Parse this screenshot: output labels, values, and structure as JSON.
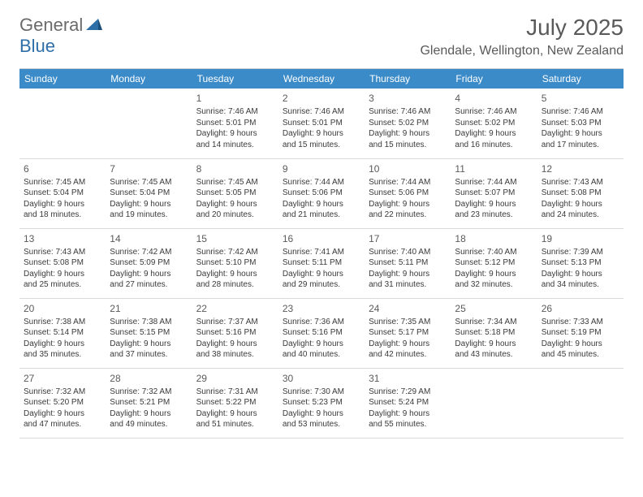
{
  "logo": {
    "general": "General",
    "blue": "Blue"
  },
  "title": "July 2025",
  "location": "Glendale, Wellington, New Zealand",
  "dayHeaders": [
    "Sunday",
    "Monday",
    "Tuesday",
    "Wednesday",
    "Thursday",
    "Friday",
    "Saturday"
  ],
  "colors": {
    "headerBg": "#3b8bc9",
    "headerText": "#ffffff",
    "logoBlue": "#2f6fa8",
    "bodyText": "#3a3a3a",
    "titleText": "#5a5a5a"
  },
  "weeks": [
    [
      null,
      null,
      {
        "n": "1",
        "sr": "Sunrise: 7:46 AM",
        "ss": "Sunset: 5:01 PM",
        "d1": "Daylight: 9 hours",
        "d2": "and 14 minutes."
      },
      {
        "n": "2",
        "sr": "Sunrise: 7:46 AM",
        "ss": "Sunset: 5:01 PM",
        "d1": "Daylight: 9 hours",
        "d2": "and 15 minutes."
      },
      {
        "n": "3",
        "sr": "Sunrise: 7:46 AM",
        "ss": "Sunset: 5:02 PM",
        "d1": "Daylight: 9 hours",
        "d2": "and 15 minutes."
      },
      {
        "n": "4",
        "sr": "Sunrise: 7:46 AM",
        "ss": "Sunset: 5:02 PM",
        "d1": "Daylight: 9 hours",
        "d2": "and 16 minutes."
      },
      {
        "n": "5",
        "sr": "Sunrise: 7:46 AM",
        "ss": "Sunset: 5:03 PM",
        "d1": "Daylight: 9 hours",
        "d2": "and 17 minutes."
      }
    ],
    [
      {
        "n": "6",
        "sr": "Sunrise: 7:45 AM",
        "ss": "Sunset: 5:04 PM",
        "d1": "Daylight: 9 hours",
        "d2": "and 18 minutes."
      },
      {
        "n": "7",
        "sr": "Sunrise: 7:45 AM",
        "ss": "Sunset: 5:04 PM",
        "d1": "Daylight: 9 hours",
        "d2": "and 19 minutes."
      },
      {
        "n": "8",
        "sr": "Sunrise: 7:45 AM",
        "ss": "Sunset: 5:05 PM",
        "d1": "Daylight: 9 hours",
        "d2": "and 20 minutes."
      },
      {
        "n": "9",
        "sr": "Sunrise: 7:44 AM",
        "ss": "Sunset: 5:06 PM",
        "d1": "Daylight: 9 hours",
        "d2": "and 21 minutes."
      },
      {
        "n": "10",
        "sr": "Sunrise: 7:44 AM",
        "ss": "Sunset: 5:06 PM",
        "d1": "Daylight: 9 hours",
        "d2": "and 22 minutes."
      },
      {
        "n": "11",
        "sr": "Sunrise: 7:44 AM",
        "ss": "Sunset: 5:07 PM",
        "d1": "Daylight: 9 hours",
        "d2": "and 23 minutes."
      },
      {
        "n": "12",
        "sr": "Sunrise: 7:43 AM",
        "ss": "Sunset: 5:08 PM",
        "d1": "Daylight: 9 hours",
        "d2": "and 24 minutes."
      }
    ],
    [
      {
        "n": "13",
        "sr": "Sunrise: 7:43 AM",
        "ss": "Sunset: 5:08 PM",
        "d1": "Daylight: 9 hours",
        "d2": "and 25 minutes."
      },
      {
        "n": "14",
        "sr": "Sunrise: 7:42 AM",
        "ss": "Sunset: 5:09 PM",
        "d1": "Daylight: 9 hours",
        "d2": "and 27 minutes."
      },
      {
        "n": "15",
        "sr": "Sunrise: 7:42 AM",
        "ss": "Sunset: 5:10 PM",
        "d1": "Daylight: 9 hours",
        "d2": "and 28 minutes."
      },
      {
        "n": "16",
        "sr": "Sunrise: 7:41 AM",
        "ss": "Sunset: 5:11 PM",
        "d1": "Daylight: 9 hours",
        "d2": "and 29 minutes."
      },
      {
        "n": "17",
        "sr": "Sunrise: 7:40 AM",
        "ss": "Sunset: 5:11 PM",
        "d1": "Daylight: 9 hours",
        "d2": "and 31 minutes."
      },
      {
        "n": "18",
        "sr": "Sunrise: 7:40 AM",
        "ss": "Sunset: 5:12 PM",
        "d1": "Daylight: 9 hours",
        "d2": "and 32 minutes."
      },
      {
        "n": "19",
        "sr": "Sunrise: 7:39 AM",
        "ss": "Sunset: 5:13 PM",
        "d1": "Daylight: 9 hours",
        "d2": "and 34 minutes."
      }
    ],
    [
      {
        "n": "20",
        "sr": "Sunrise: 7:38 AM",
        "ss": "Sunset: 5:14 PM",
        "d1": "Daylight: 9 hours",
        "d2": "and 35 minutes."
      },
      {
        "n": "21",
        "sr": "Sunrise: 7:38 AM",
        "ss": "Sunset: 5:15 PM",
        "d1": "Daylight: 9 hours",
        "d2": "and 37 minutes."
      },
      {
        "n": "22",
        "sr": "Sunrise: 7:37 AM",
        "ss": "Sunset: 5:16 PM",
        "d1": "Daylight: 9 hours",
        "d2": "and 38 minutes."
      },
      {
        "n": "23",
        "sr": "Sunrise: 7:36 AM",
        "ss": "Sunset: 5:16 PM",
        "d1": "Daylight: 9 hours",
        "d2": "and 40 minutes."
      },
      {
        "n": "24",
        "sr": "Sunrise: 7:35 AM",
        "ss": "Sunset: 5:17 PM",
        "d1": "Daylight: 9 hours",
        "d2": "and 42 minutes."
      },
      {
        "n": "25",
        "sr": "Sunrise: 7:34 AM",
        "ss": "Sunset: 5:18 PM",
        "d1": "Daylight: 9 hours",
        "d2": "and 43 minutes."
      },
      {
        "n": "26",
        "sr": "Sunrise: 7:33 AM",
        "ss": "Sunset: 5:19 PM",
        "d1": "Daylight: 9 hours",
        "d2": "and 45 minutes."
      }
    ],
    [
      {
        "n": "27",
        "sr": "Sunrise: 7:32 AM",
        "ss": "Sunset: 5:20 PM",
        "d1": "Daylight: 9 hours",
        "d2": "and 47 minutes."
      },
      {
        "n": "28",
        "sr": "Sunrise: 7:32 AM",
        "ss": "Sunset: 5:21 PM",
        "d1": "Daylight: 9 hours",
        "d2": "and 49 minutes."
      },
      {
        "n": "29",
        "sr": "Sunrise: 7:31 AM",
        "ss": "Sunset: 5:22 PM",
        "d1": "Daylight: 9 hours",
        "d2": "and 51 minutes."
      },
      {
        "n": "30",
        "sr": "Sunrise: 7:30 AM",
        "ss": "Sunset: 5:23 PM",
        "d1": "Daylight: 9 hours",
        "d2": "and 53 minutes."
      },
      {
        "n": "31",
        "sr": "Sunrise: 7:29 AM",
        "ss": "Sunset: 5:24 PM",
        "d1": "Daylight: 9 hours",
        "d2": "and 55 minutes."
      },
      null,
      null
    ]
  ]
}
